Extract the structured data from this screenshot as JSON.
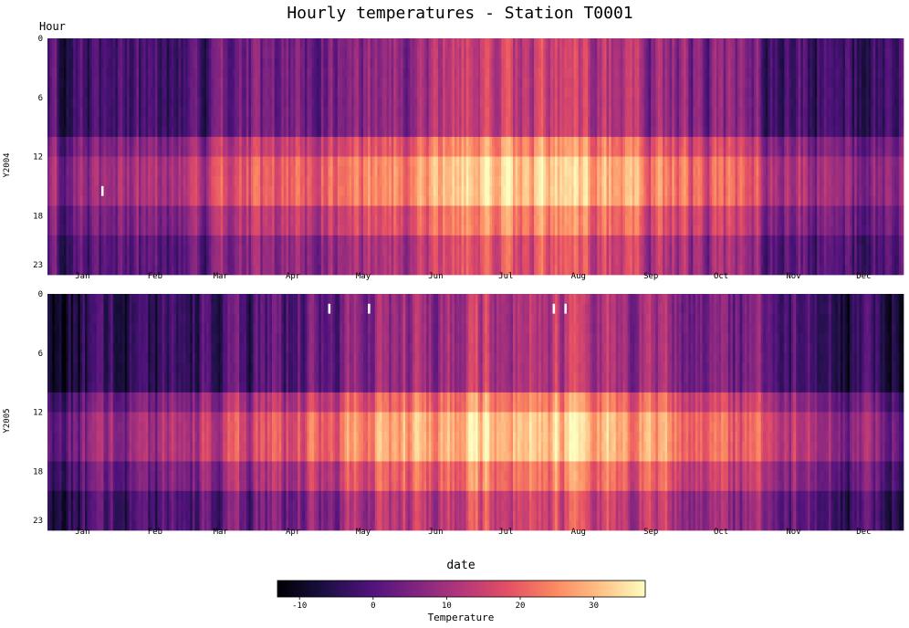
{
  "chart_data": {
    "type": "heatmap",
    "title": "Hourly temperatures - Station T0001",
    "ylabel": "Hour",
    "xlabel": "date",
    "colorbar": {
      "label": "Temperature",
      "colormap": "magma",
      "range": [
        -13,
        37
      ],
      "ticks": [
        -10,
        0,
        10,
        20,
        30
      ]
    },
    "y_ticks": [
      0,
      6,
      12,
      18,
      23
    ],
    "x_ticks": [
      "Jan",
      "Feb",
      "Mar",
      "Apr",
      "May",
      "Jun",
      "Jul",
      "Aug",
      "Sep",
      "Oct",
      "Nov",
      "Dec"
    ],
    "panels": [
      {
        "name": "Y2004",
        "year": 2004,
        "seasonal_mean_by_month": [
          1,
          2,
          7,
          10,
          14,
          18,
          21,
          20,
          15,
          11,
          5,
          1
        ],
        "diurnal_amplitude": 9,
        "peak_hours": [
          12,
          16
        ],
        "missing": [
          {
            "day": 23,
            "hour": 15
          }
        ]
      },
      {
        "name": "Y2005",
        "year": 2005,
        "seasonal_mean_by_month": [
          -2,
          -1,
          5,
          9,
          14,
          19,
          22,
          20,
          15,
          11,
          4,
          -1
        ],
        "diurnal_amplitude": 10,
        "peak_hours": [
          12,
          16
        ],
        "missing": [
          {
            "day": 120,
            "hour": 1
          },
          {
            "day": 137,
            "hour": 1
          },
          {
            "day": 216,
            "hour": 1
          },
          {
            "day": 221,
            "hour": 1
          }
        ]
      }
    ]
  }
}
